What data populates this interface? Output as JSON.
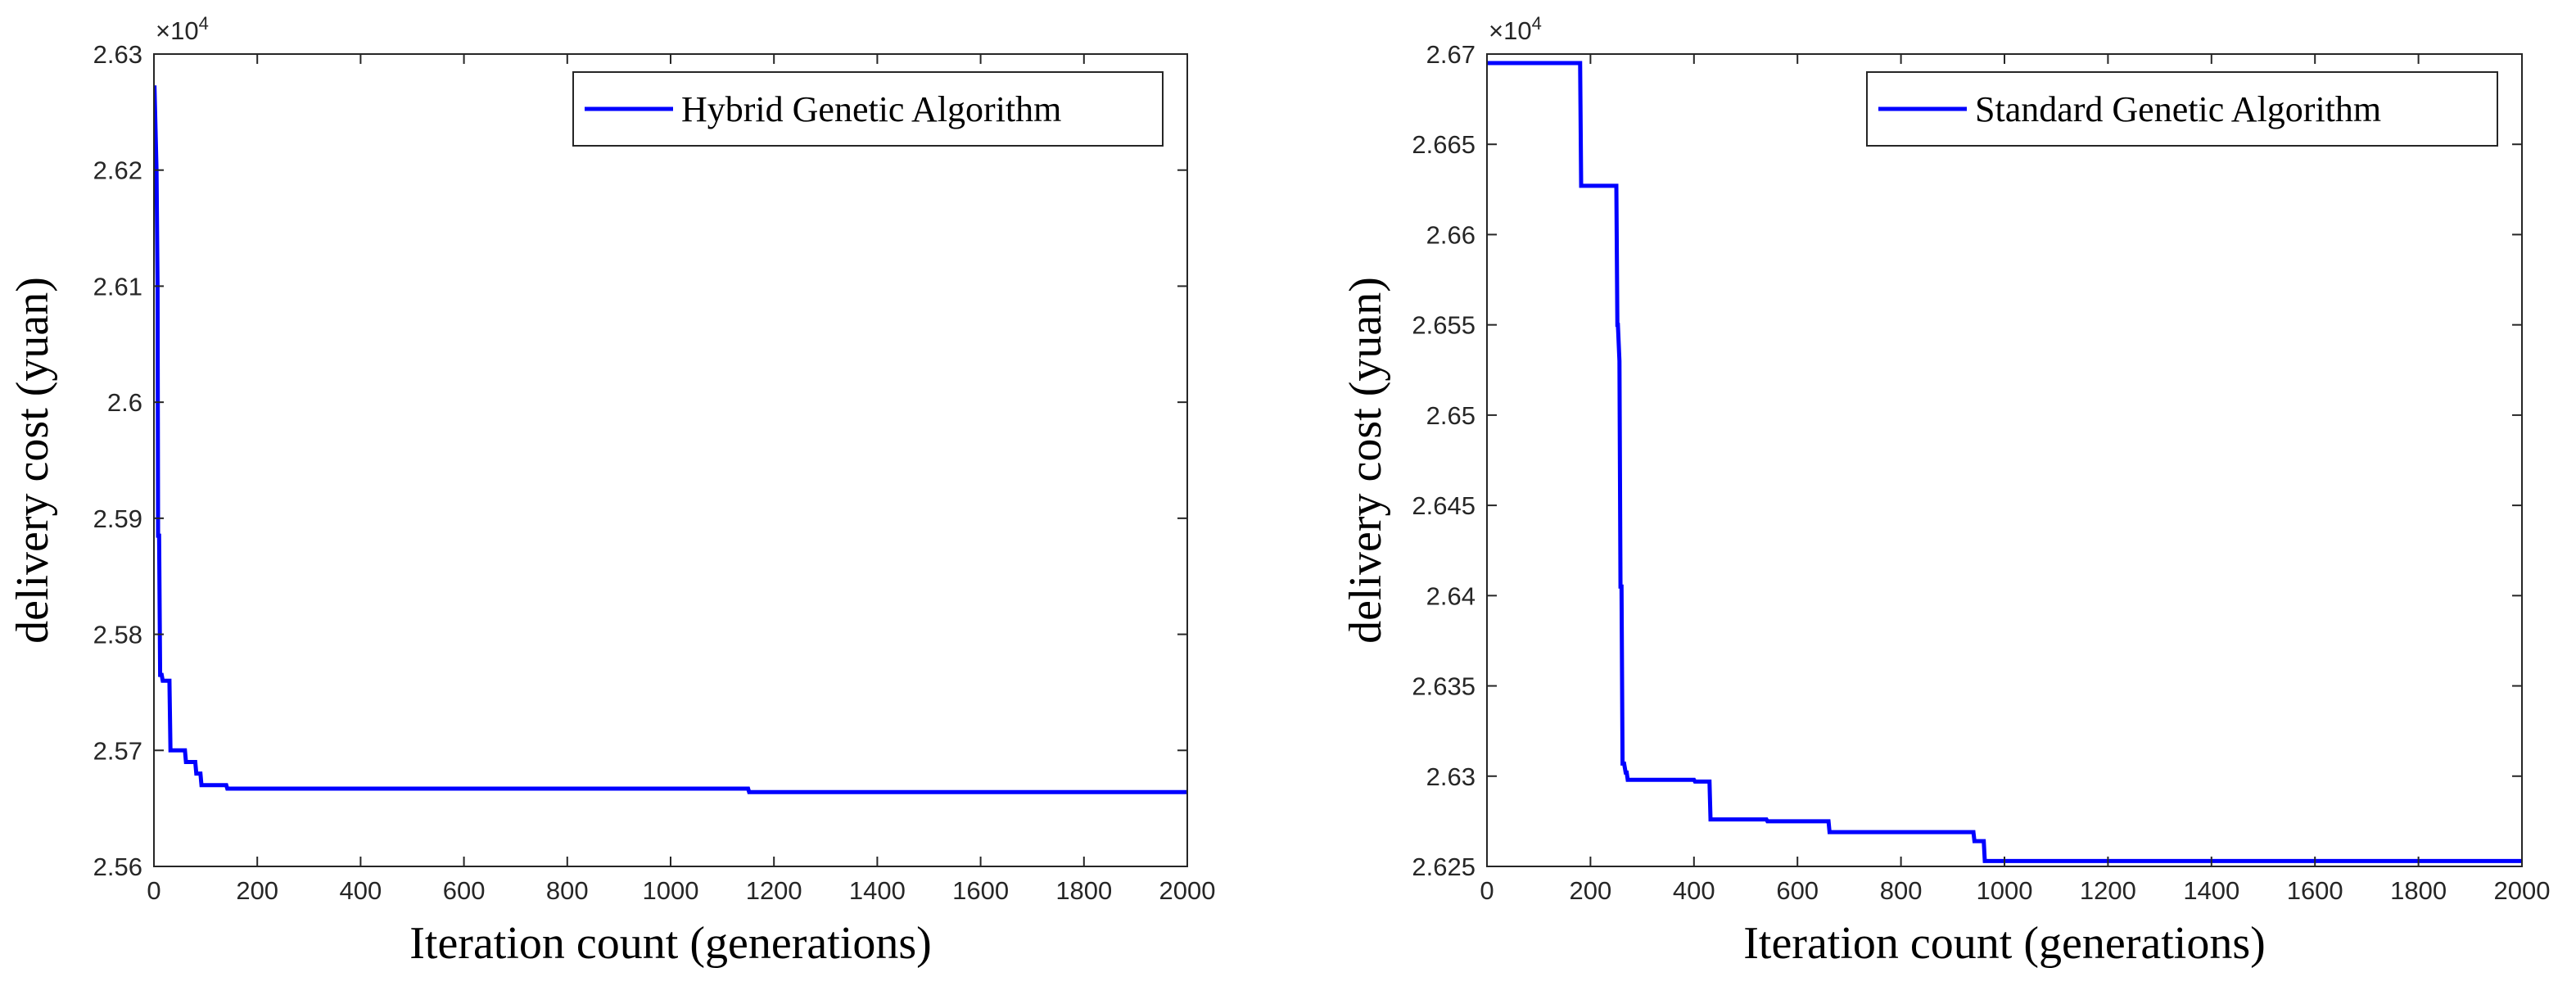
{
  "chart_data": [
    {
      "type": "line",
      "title": "",
      "xlabel": "Iteration count (generations)",
      "ylabel": "delivery cost (yuan)",
      "y_multiplier_label": "×10⁴",
      "y_multiplier_base": "×10",
      "y_multiplier_exp": "4",
      "xlim": [
        0,
        2000
      ],
      "ylim": [
        2.56,
        2.63
      ],
      "xticks": [
        0,
        200,
        400,
        600,
        800,
        1000,
        1200,
        1400,
        1600,
        1800,
        2000
      ],
      "xtick_labels": [
        "0",
        "200",
        "400",
        "600",
        "800",
        "1000",
        "1200",
        "1400",
        "1600",
        "1800",
        "2000"
      ],
      "yticks": [
        2.56,
        2.57,
        2.58,
        2.59,
        2.6,
        2.61,
        2.62,
        2.63
      ],
      "ytick_labels": [
        "2.56",
        "2.57",
        "2.58",
        "2.59",
        "2.6",
        "2.61",
        "2.62",
        "2.63"
      ],
      "grid": false,
      "legend": "top-right",
      "color": "#0000ff",
      "series": [
        {
          "name": "Hybrid Genetic Algorithm",
          "x": [
            1,
            5,
            7,
            8,
            10,
            12,
            15,
            17,
            30,
            32,
            60,
            62,
            80,
            82,
            90,
            92,
            140,
            142,
            1150,
            1152,
            2000
          ],
          "y": [
            2.6273,
            2.62,
            2.61,
            2.5885,
            2.5885,
            2.5765,
            2.5765,
            2.576,
            2.576,
            2.57,
            2.57,
            2.569,
            2.569,
            2.568,
            2.568,
            2.567,
            2.567,
            2.5667,
            2.5667,
            2.5664,
            2.5664
          ]
        }
      ]
    },
    {
      "type": "line",
      "title": "",
      "xlabel": "Iteration count (generations)",
      "ylabel": "delivery cost (yuan)",
      "y_multiplier_label": "×10⁴",
      "y_multiplier_base": "×10",
      "y_multiplier_exp": "4",
      "xlim": [
        0,
        2000
      ],
      "ylim": [
        2.625,
        2.67
      ],
      "xticks": [
        0,
        200,
        400,
        600,
        800,
        1000,
        1200,
        1400,
        1600,
        1800,
        2000
      ],
      "xtick_labels": [
        "0",
        "200",
        "400",
        "600",
        "800",
        "1000",
        "1200",
        "1400",
        "1600",
        "1800",
        "2000"
      ],
      "yticks": [
        2.625,
        2.63,
        2.635,
        2.64,
        2.645,
        2.65,
        2.655,
        2.66,
        2.665,
        2.67
      ],
      "ytick_labels": [
        "2.625",
        "2.63",
        "2.635",
        "2.64",
        "2.645",
        "2.65",
        "2.655",
        "2.66",
        "2.665",
        "2.67"
      ],
      "grid": false,
      "legend": "top-right",
      "color": "#0000ff",
      "series": [
        {
          "name": "Standard Genetic Algorithm",
          "x": [
            0,
            180,
            182,
            250,
            252,
            253,
            256,
            258,
            260,
            262,
            265,
            268,
            270,
            272,
            400,
            402,
            430,
            432,
            540,
            542,
            660,
            662,
            940,
            942,
            960,
            962,
            2000
          ],
          "y": [
            2.6695,
            2.6695,
            2.6627,
            2.6627,
            2.655,
            2.655,
            2.653,
            2.6405,
            2.6405,
            2.6307,
            2.6307,
            2.6302,
            2.6302,
            2.6298,
            2.6298,
            2.6297,
            2.6297,
            2.6276,
            2.6276,
            2.6275,
            2.6275,
            2.6269,
            2.6269,
            2.6264,
            2.6264,
            2.6253,
            2.6253
          ]
        }
      ]
    }
  ]
}
